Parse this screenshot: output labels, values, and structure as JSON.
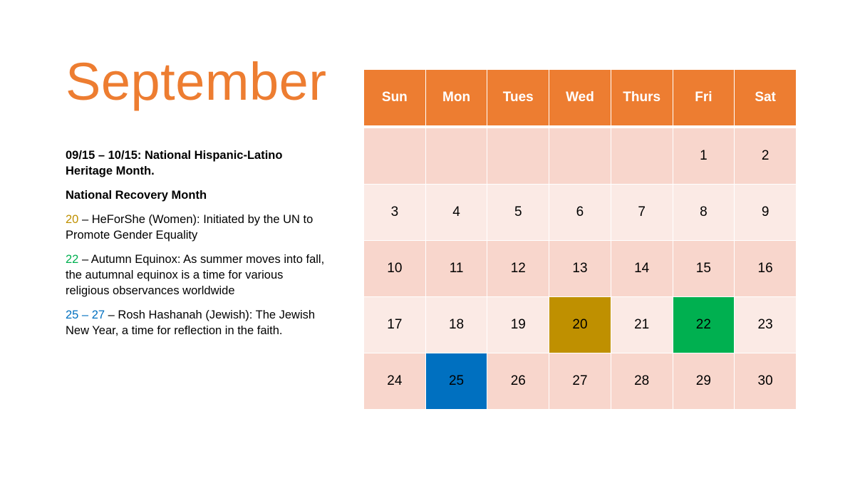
{
  "title": "September",
  "notes": {
    "heritage": "09/15 – 10/15: National Hispanic-Latino Heritage Month.",
    "recovery": "National Recovery Month",
    "events": [
      {
        "date": "20",
        "text": " – HeForShe (Women): Initiated by the UN to Promote Gender Equality",
        "color": "#BF9000"
      },
      {
        "date": "22",
        "text": " – Autumn Equinox: As summer moves into fall, the autumnal equinox is a time for various religious observances worldwide",
        "color": "#00B050"
      },
      {
        "date": "25 – 27",
        "text": " – Rosh Hashanah (Jewish): The Jewish New Year, a time for reflection in the faith.",
        "color": "#0070C0"
      }
    ]
  },
  "calendar": {
    "days": [
      "Sun",
      "Mon",
      "Tues",
      "Wed",
      "Thurs",
      "Fri",
      "Sat"
    ],
    "weeks": [
      [
        "",
        "",
        "",
        "",
        "",
        "1",
        "2"
      ],
      [
        "3",
        "4",
        "5",
        "6",
        "7",
        "8",
        "9"
      ],
      [
        "10",
        "11",
        "12",
        "13",
        "14",
        "15",
        "16"
      ],
      [
        "17",
        "18",
        "19",
        "20",
        "21",
        "22",
        "23"
      ],
      [
        "24",
        "25",
        "26",
        "27",
        "28",
        "29",
        "30"
      ]
    ],
    "highlights": {
      "20": "#BF9000",
      "22": "#00B050",
      "25": "#0070C0"
    }
  },
  "colors": {
    "accent": "#ED7D31",
    "row_dark": "#F8D6CC",
    "row_light": "#FBEAE5"
  }
}
